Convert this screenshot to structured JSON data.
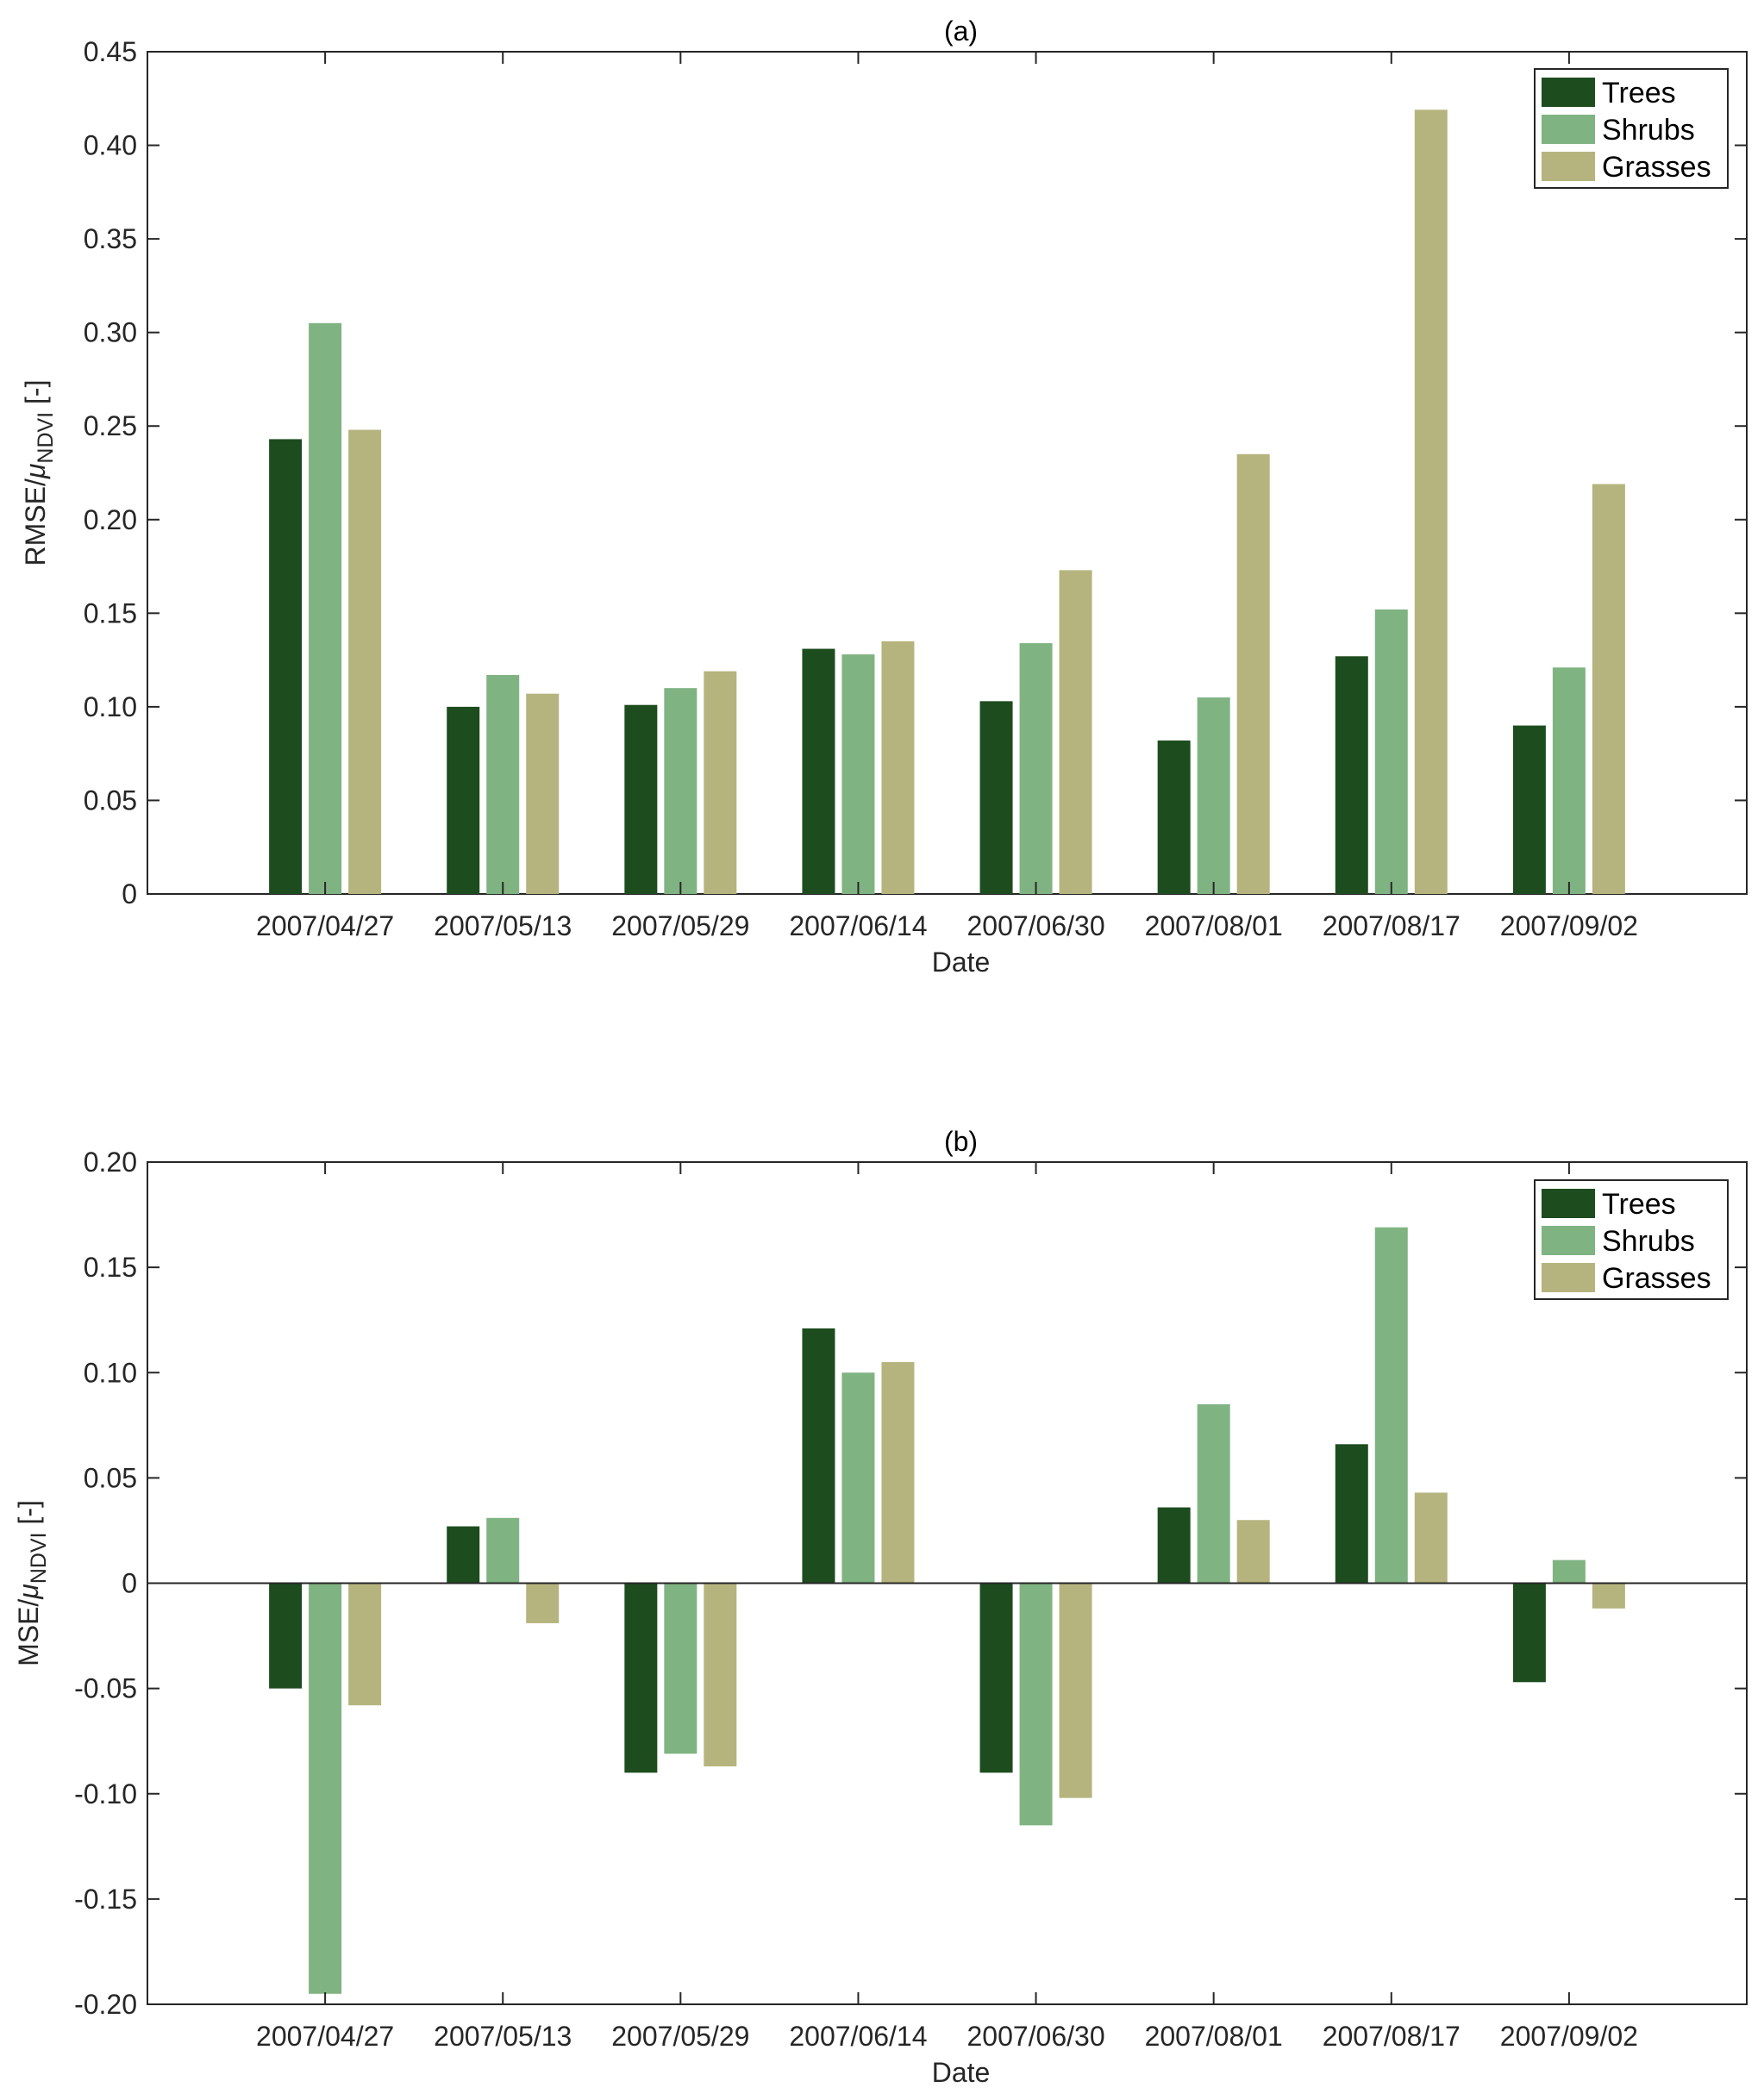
{
  "chart_data": [
    {
      "type": "bar",
      "title": "(a)",
      "xlabel": "Date",
      "ylabel_main": "RMSE/",
      "ylabel_symbol": "μ",
      "ylabel_sub": "NDVI",
      "ylabel_unit": " [-]",
      "ylim": [
        0,
        0.45
      ],
      "yticks": [
        "0",
        "0.05",
        "0.10",
        "0.15",
        "0.20",
        "0.25",
        "0.30",
        "0.35",
        "0.40",
        "0.45"
      ],
      "categories": [
        "2007/04/27",
        "2007/05/13",
        "2007/05/29",
        "2007/06/14",
        "2007/06/30",
        "2007/08/01",
        "2007/08/17",
        "2007/09/02"
      ],
      "legend_position": "top-right",
      "series": [
        {
          "name": "Trees",
          "color": "#1d4c1e",
          "values": [
            0.243,
            0.1,
            0.101,
            0.131,
            0.103,
            0.082,
            0.127,
            0.09
          ]
        },
        {
          "name": "Shrubs",
          "color": "#80b382",
          "values": [
            0.305,
            0.117,
            0.11,
            0.128,
            0.134,
            0.105,
            0.152,
            0.121
          ]
        },
        {
          "name": "Grasses",
          "color": "#b5b47e",
          "values": [
            0.248,
            0.107,
            0.119,
            0.135,
            0.173,
            0.235,
            0.419,
            0.219
          ]
        }
      ]
    },
    {
      "type": "bar",
      "title": "(b)",
      "xlabel": "Date",
      "ylabel_main": "MSE/",
      "ylabel_symbol": "μ",
      "ylabel_sub": "NDVI",
      "ylabel_unit": " [-]",
      "ylim": [
        -0.2,
        0.2
      ],
      "yticks": [
        "-0.20",
        "-0.15",
        "-0.10",
        "-0.05",
        "0",
        "0.05",
        "0.10",
        "0.15",
        "0.20"
      ],
      "categories": [
        "2007/04/27",
        "2007/05/13",
        "2007/05/29",
        "2007/06/14",
        "2007/06/30",
        "2007/08/01",
        "2007/08/17",
        "2007/09/02"
      ],
      "legend_position": "top-right",
      "series": [
        {
          "name": "Trees",
          "color": "#1d4c1e",
          "values": [
            -0.05,
            0.027,
            -0.09,
            0.121,
            -0.09,
            0.036,
            0.066,
            -0.047
          ]
        },
        {
          "name": "Shrubs",
          "color": "#80b382",
          "values": [
            -0.195,
            0.031,
            -0.081,
            0.1,
            -0.115,
            0.085,
            0.169,
            0.011
          ]
        },
        {
          "name": "Grasses",
          "color": "#b5b47e",
          "values": [
            -0.058,
            -0.019,
            -0.087,
            0.105,
            -0.102,
            0.03,
            0.043,
            -0.012
          ]
        }
      ]
    }
  ]
}
